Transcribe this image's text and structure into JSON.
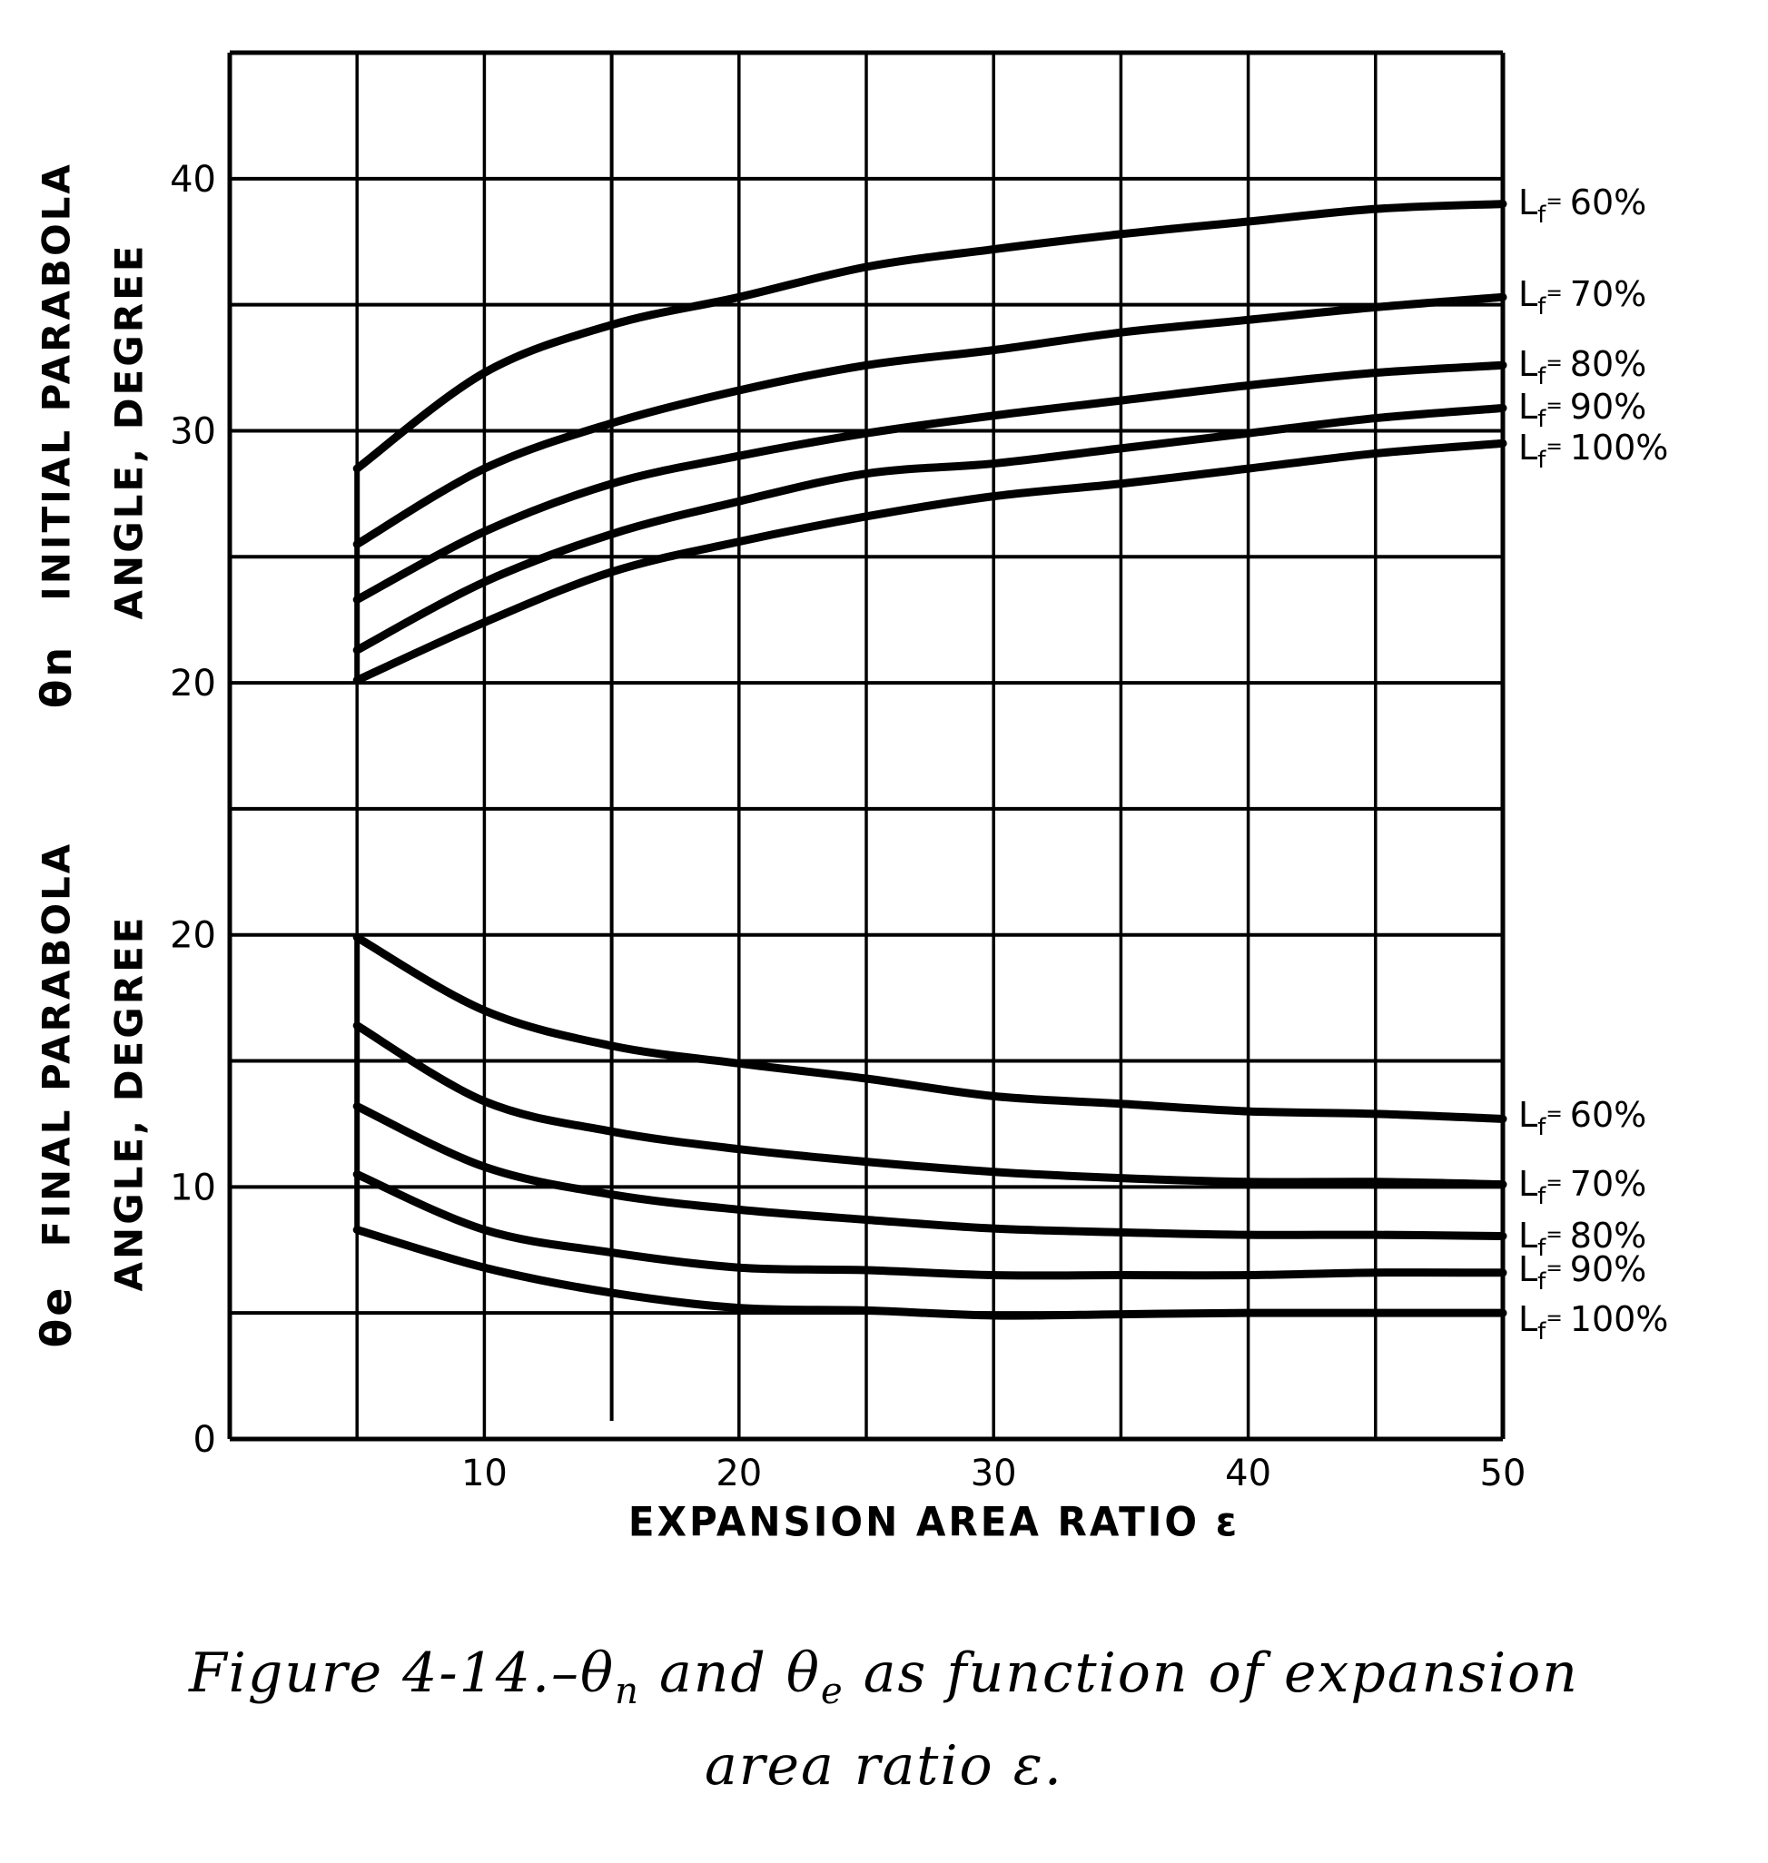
{
  "figure": {
    "caption_line1_prefix": "Figure 4-14.–θ",
    "caption_line1_sub_n": "n",
    "caption_line1_mid": " and θ",
    "caption_line1_sub_e": "e",
    "caption_line1_suffix": " as  function of expansion",
    "caption_line2": "area ratio ε."
  },
  "axes": {
    "upper_ylabel_symbol": "θn",
    "upper_ylabel_line1": "INITIAL  PARABOLA",
    "upper_ylabel_line2": "ANGLE, DEGREE",
    "lower_ylabel_symbol": "θe",
    "lower_ylabel_line1": "FINAL  PARABOLA",
    "lower_ylabel_line2": "ANGLE, DEGREE",
    "xlabel": "EXPANSION  AREA  RATIO  ε"
  },
  "chart_data": [
    {
      "type": "line",
      "title": "θn initial parabola angle vs expansion area ratio",
      "xlabel": "EXPANSION AREA RATIO ε",
      "ylabel": "θn INITIAL PARABOLA ANGLE, DEGREE",
      "x": [
        5,
        10,
        15,
        20,
        25,
        30,
        35,
        40,
        45,
        50
      ],
      "xlim": [
        0,
        50
      ],
      "ylim": [
        20,
        45
      ],
      "yticks": [
        20,
        30,
        40
      ],
      "xticks": [
        10,
        20,
        30,
        40,
        50
      ],
      "grid": true,
      "legend_position": "right, inline labels",
      "series": [
        {
          "name": "Lf = 60%",
          "values": [
            28.5,
            32.3,
            34.2,
            35.3,
            36.5,
            37.2,
            37.8,
            38.3,
            38.8,
            39.0
          ]
        },
        {
          "name": "Lf = 70%",
          "values": [
            25.5,
            28.5,
            30.3,
            31.6,
            32.6,
            33.2,
            33.9,
            34.4,
            34.9,
            35.3
          ]
        },
        {
          "name": "Lf = 80%",
          "values": [
            23.3,
            26.0,
            27.9,
            29.0,
            29.9,
            30.6,
            31.2,
            31.8,
            32.3,
            32.6
          ]
        },
        {
          "name": "Lf = 90%",
          "values": [
            21.3,
            24.0,
            25.9,
            27.2,
            28.3,
            28.7,
            29.3,
            29.9,
            30.5,
            30.9
          ]
        },
        {
          "name": "Lf = 100%",
          "values": [
            20.1,
            22.4,
            24.4,
            25.6,
            26.6,
            27.4,
            27.9,
            28.5,
            29.1,
            29.5
          ]
        }
      ]
    },
    {
      "type": "line",
      "title": "θe final parabola angle vs expansion area ratio",
      "xlabel": "EXPANSION AREA RATIO ε",
      "ylabel": "θe FINAL PARABOLA ANGLE, DEGREE",
      "x": [
        5,
        10,
        15,
        20,
        25,
        30,
        35,
        40,
        45,
        50
      ],
      "xlim": [
        0,
        50
      ],
      "ylim": [
        0,
        25
      ],
      "yticks": [
        0,
        10,
        20
      ],
      "xticks": [
        10,
        20,
        30,
        40,
        50
      ],
      "grid": true,
      "legend_position": "right, inline labels",
      "series": [
        {
          "name": "Lf = 60%",
          "values": [
            19.9,
            17.0,
            15.6,
            14.9,
            14.3,
            13.6,
            13.3,
            13.0,
            12.9,
            12.7
          ]
        },
        {
          "name": "Lf = 70%",
          "values": [
            16.4,
            13.4,
            12.2,
            11.5,
            11.0,
            10.6,
            10.35,
            10.2,
            10.2,
            10.1
          ]
        },
        {
          "name": "Lf = 80%",
          "values": [
            13.2,
            10.8,
            9.7,
            9.1,
            8.7,
            8.35,
            8.2,
            8.1,
            8.1,
            8.05
          ]
        },
        {
          "name": "Lf = 90%",
          "values": [
            10.5,
            8.3,
            7.4,
            6.8,
            6.7,
            6.5,
            6.5,
            6.5,
            6.6,
            6.6
          ]
        },
        {
          "name": "Lf = 100%",
          "values": [
            8.3,
            6.8,
            5.8,
            5.2,
            5.1,
            4.9,
            4.95,
            5.0,
            5.0,
            5.0
          ]
        }
      ]
    }
  ],
  "labels": {
    "upper": [
      {
        "prefix": "L",
        "sub": "f",
        "eq": "=",
        "pct": "60%",
        "y": 222
      },
      {
        "prefix": "L",
        "sub": "f",
        "eq": "=",
        "pct": "70%",
        "y": 323
      },
      {
        "prefix": "L",
        "sub": "f",
        "eq": "=",
        "pct": "80%",
        "y": 400
      },
      {
        "prefix": "L",
        "sub": "f",
        "eq": "=",
        "pct": "90%",
        "y": 447
      },
      {
        "prefix": "L",
        "sub": "f",
        "eq": "=",
        "pct": "100%",
        "y": 492
      }
    ],
    "lower": [
      {
        "prefix": "L",
        "sub": "f",
        "eq": "=",
        "pct": "60%",
        "y": 1227
      },
      {
        "prefix": "L",
        "sub": "f",
        "eq": "=",
        "pct": "70%",
        "y": 1303
      },
      {
        "prefix": "L",
        "sub": "f",
        "eq": "=",
        "pct": "80%",
        "y": 1360
      },
      {
        "prefix": "L",
        "sub": "f",
        "eq": "=",
        "pct": "90%",
        "y": 1397
      },
      {
        "prefix": "L",
        "sub": "f",
        "eq": "=",
        "pct": "100%",
        "y": 1452
      }
    ]
  },
  "tick_labels": {
    "x": [
      "10",
      "20",
      "30",
      "40",
      "50"
    ],
    "upper_y": [
      "40",
      "30",
      "20"
    ],
    "lower_y": [
      "20",
      "10",
      "0"
    ]
  },
  "style": {
    "ink": "#000000",
    "paper": "#ffffff"
  }
}
